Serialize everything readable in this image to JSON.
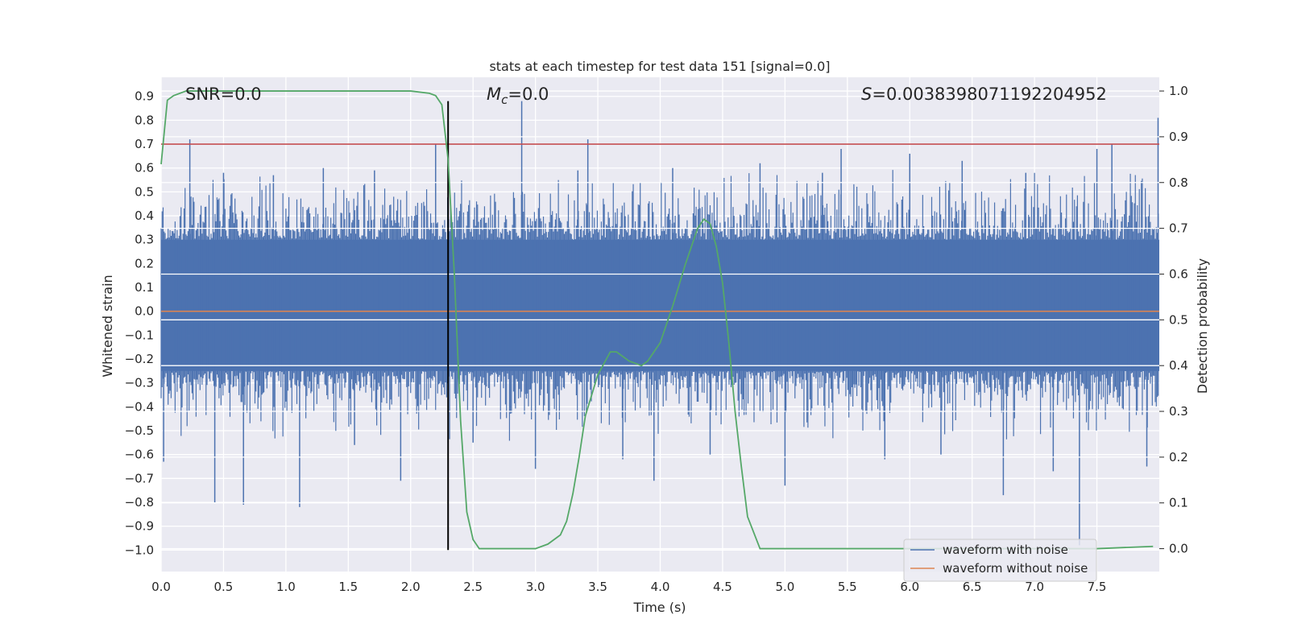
{
  "chart_data": {
    "type": "line",
    "title": "stats at each timestep for test data 151 [signal=0.0]",
    "xlabel": "Time (s)",
    "ylabel": "Whitened strain",
    "ylabel_right": "Detection probability",
    "xlim": [
      0.0,
      8.0
    ],
    "ylim": [
      -1.09,
      0.98
    ],
    "ylim_right": [
      -0.05,
      1.03
    ],
    "x_ticks": [
      0.0,
      0.5,
      1.0,
      1.5,
      2.0,
      2.5,
      3.0,
      3.5,
      4.0,
      4.5,
      5.0,
      5.5,
      6.0,
      6.5,
      7.0,
      7.5
    ],
    "x_tick_labels": [
      "0.0",
      "0.5",
      "1.0",
      "1.5",
      "2.0",
      "2.5",
      "3.0",
      "3.5",
      "4.0",
      "4.5",
      "5.0",
      "5.5",
      "6.0",
      "6.5",
      "7.0",
      "7.5"
    ],
    "y_ticks": [
      0.9,
      0.8,
      0.7,
      0.6,
      0.5,
      0.4,
      0.3,
      0.2,
      0.1,
      0.0,
      -0.1,
      -0.2,
      -0.3,
      -0.4,
      -0.5,
      -0.6,
      -0.7,
      -0.8,
      -0.9,
      -1.0
    ],
    "y_tick_labels": [
      "0.9",
      "0.8",
      "0.7",
      "0.6",
      "0.5",
      "0.4",
      "0.3",
      "0.2",
      "0.1",
      "0.0",
      "−0.1",
      "−0.2",
      "−0.3",
      "−0.4",
      "−0.5",
      "−0.6",
      "−0.7",
      "−0.8",
      "−0.9",
      "−1.0"
    ],
    "y_right_ticks": [
      1.0,
      0.9,
      0.8,
      0.7,
      0.6,
      0.5,
      0.4,
      0.3,
      0.2,
      0.1,
      0.0
    ],
    "y_right_tick_labels": [
      "1.0",
      "0.9",
      "0.8",
      "0.7",
      "0.6",
      "0.5",
      "0.4",
      "0.3",
      "0.2",
      "0.1",
      "0.0"
    ],
    "grid": true,
    "legend_position": "lower-right",
    "series": [
      {
        "name": "waveform with noise",
        "axis": "left",
        "color": "#4c72b0",
        "style": "dense-noise",
        "band": [
          -0.25,
          0.3
        ],
        "x": [
          0.02,
          0.23,
          0.43,
          0.5,
          0.66,
          0.9,
          1.11,
          1.3,
          1.55,
          1.71,
          1.92,
          2.2,
          2.3,
          2.5,
          2.89,
          3.0,
          3.34,
          3.42,
          3.7,
          3.95,
          4.1,
          4.4,
          4.8,
          5.0,
          5.3,
          5.45,
          5.8,
          6.0,
          6.25,
          6.42,
          6.75,
          6.93,
          7.15,
          7.36,
          7.5,
          7.62,
          7.9,
          7.99
        ],
        "y": [
          -0.63,
          0.72,
          -0.8,
          0.58,
          -0.81,
          0.57,
          -0.82,
          0.6,
          -0.56,
          0.59,
          -0.71,
          0.7,
          -0.55,
          -0.55,
          0.88,
          -0.66,
          0.59,
          0.72,
          -0.62,
          -0.71,
          0.6,
          -0.6,
          0.62,
          -0.73,
          0.58,
          0.68,
          -0.62,
          0.66,
          -0.6,
          0.63,
          -0.77,
          0.58,
          -0.67,
          -0.98,
          0.68,
          0.7,
          -0.65,
          0.81
        ]
      },
      {
        "name": "waveform without noise",
        "axis": "left",
        "color": "#dd8452",
        "x": [
          0.0,
          8.0
        ],
        "y": [
          0.0,
          0.0
        ]
      },
      {
        "name": "",
        "axis": "right",
        "color": "#55a868",
        "x": [
          0.0,
          0.05,
          0.1,
          0.2,
          0.5,
          1.0,
          1.5,
          2.0,
          2.15,
          2.2,
          2.25,
          2.3,
          2.35,
          2.4,
          2.45,
          2.5,
          2.55,
          2.6,
          2.8,
          3.0,
          3.1,
          3.2,
          3.25,
          3.3,
          3.35,
          3.4,
          3.5,
          3.6,
          3.65,
          3.7,
          3.75,
          3.85,
          3.9,
          4.0,
          4.1,
          4.2,
          4.3,
          4.35,
          4.4,
          4.45,
          4.5,
          4.55,
          4.6,
          4.65,
          4.7,
          4.8,
          5.0,
          5.5,
          6.0,
          6.5,
          7.0,
          7.5,
          7.95
        ],
        "y": [
          0.84,
          0.98,
          0.99,
          1.0,
          1.0,
          1.0,
          1.0,
          1.0,
          0.995,
          0.99,
          0.97,
          0.85,
          0.6,
          0.28,
          0.08,
          0.02,
          0.0,
          0.0,
          0.0,
          0.0,
          0.01,
          0.03,
          0.06,
          0.12,
          0.2,
          0.29,
          0.38,
          0.43,
          0.43,
          0.42,
          0.41,
          0.4,
          0.41,
          0.45,
          0.53,
          0.62,
          0.7,
          0.72,
          0.71,
          0.66,
          0.58,
          0.45,
          0.3,
          0.18,
          0.07,
          0.0,
          0.0,
          0.0,
          0.0,
          0.0,
          0.0,
          0.0,
          0.005
        ]
      }
    ],
    "threshold_line": {
      "axis": "left",
      "y": 0.7,
      "color": "#c44e52"
    },
    "vertical_marker": {
      "axis": "left",
      "x": 2.3,
      "y_range": [
        -1.0,
        0.88
      ],
      "color": "#000000"
    },
    "annotations": {
      "snr": "SNR=0.0",
      "mc_symbol": "M",
      "mc_sub": "c",
      "mc_value": "=0.0",
      "s_symbol": "S",
      "s_value": "=0.0038398071192204952"
    },
    "colors": {
      "axes_bg": "#eaeaf2",
      "grid": "#ffffff"
    }
  }
}
